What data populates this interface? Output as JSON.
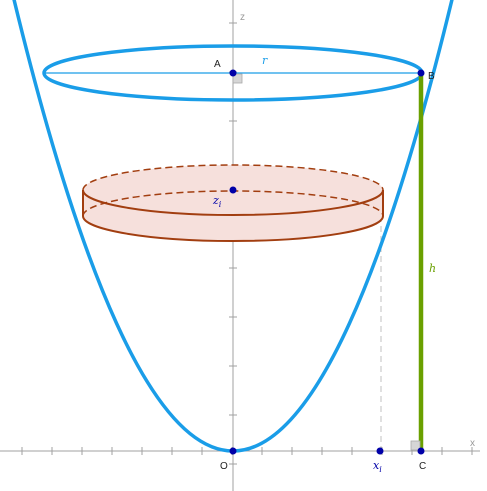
{
  "figure": {
    "axes": {
      "x_label": "x",
      "z_label": "z"
    },
    "points": {
      "A": "A",
      "B": "B",
      "C": "C",
      "O": "O"
    },
    "labels": {
      "r": "r",
      "h": "h",
      "zi": "z",
      "zi_sub": "i",
      "xi": "x",
      "xi_sub": "i"
    },
    "colors": {
      "paraboloid": "#1a9de8",
      "slice": "#a23e10",
      "slice_fill": "#f6e0dc",
      "height_segment": "#6aa000",
      "points": "#0000a8",
      "axes": "#a0a0a0",
      "guides": "#c0c0c0"
    }
  }
}
